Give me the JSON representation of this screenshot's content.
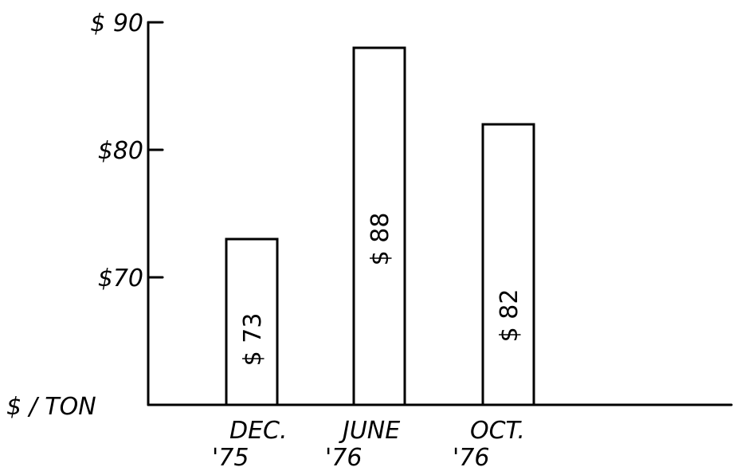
{
  "chart_data": {
    "type": "bar",
    "categories": [
      "DEC.\n'75",
      "JUNE\n'76",
      "OCT.\n'76"
    ],
    "values": [
      73,
      88,
      82
    ],
    "data_labels": [
      "$ 73",
      "$ 88",
      "$ 82"
    ],
    "title": "",
    "xlabel": "",
    "ylabel": "$ / TON",
    "ylim": [
      60,
      90
    ],
    "yticks": [
      {
        "value": 70,
        "label": "$70"
      },
      {
        "value": 80,
        "label": "$80"
      },
      {
        "value": 90,
        "label": "$ 90"
      }
    ],
    "grid": false,
    "colors": {
      "ink": "#000000",
      "background": "#ffffff",
      "bar_fill": "#ffffff"
    }
  }
}
